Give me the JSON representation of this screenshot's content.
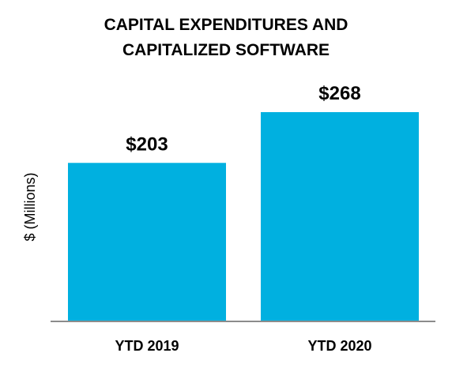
{
  "chart_data": {
    "type": "bar",
    "title": [
      "CAPITAL EXPENDITURES AND",
      "CAPITALIZED SOFTWARE"
    ],
    "ylabel": "$ (Millions)",
    "xlabel": "",
    "categories": [
      "YTD 2019",
      "YTD 2020"
    ],
    "values": [
      203,
      268
    ],
    "data_labels": [
      "$203",
      "$268"
    ],
    "ylim": [
      0,
      268
    ],
    "grid": false,
    "legend": "none",
    "colors": {
      "bar": "#00B0E0",
      "axis": "#8C8C8C",
      "text": "#000000"
    }
  }
}
